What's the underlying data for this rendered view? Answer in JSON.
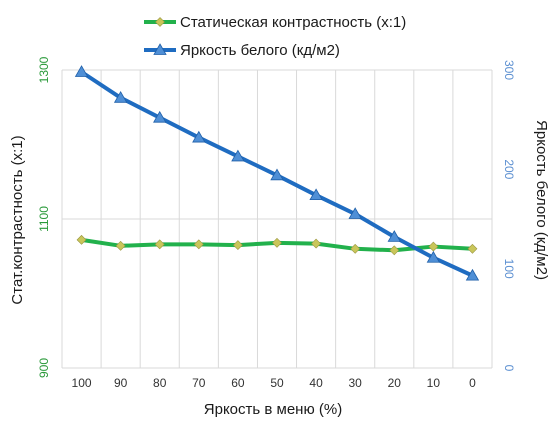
{
  "chart_data": {
    "type": "line",
    "x": [
      100,
      90,
      80,
      70,
      60,
      50,
      40,
      30,
      20,
      10,
      0
    ],
    "xlabel": "Яркость в меню (%)",
    "y_left": {
      "label": "Стат.контрастность  (x:1)",
      "range": [
        900,
        1300
      ],
      "ticks": [
        900,
        1100,
        1300
      ],
      "color": "#2a9a3a"
    },
    "y_right": {
      "label": "Яркость белого (кд/м2)",
      "range": [
        0,
        300
      ],
      "ticks": [
        0,
        100,
        200,
        300
      ],
      "color": "#5b8fd1"
    },
    "grid": true,
    "legend_position": "top",
    "series": [
      {
        "name": "Статическая контрастность  (x:1)",
        "axis": "left",
        "line_color": "#22b14c",
        "marker_color": "#c9c65a",
        "marker": "diamond",
        "values": [
          1072,
          1064,
          1066,
          1066,
          1065,
          1068,
          1067,
          1060,
          1058,
          1063,
          1060
        ]
      },
      {
        "name": "Яркость белого (кд/м2)",
        "axis": "right",
        "line_color": "#1f6cc1",
        "marker_color": "#4f8fd6",
        "marker": "triangle",
        "values": [
          298,
          272,
          252,
          232,
          213,
          194,
          174,
          155,
          132,
          111,
          93
        ]
      }
    ]
  }
}
